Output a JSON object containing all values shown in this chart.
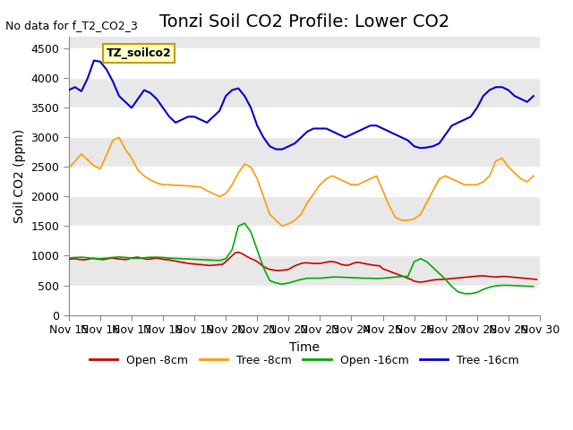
{
  "title": "Tonzi Soil CO2 Profile: Lower CO2",
  "no_data_text": "No data for f_T2_CO2_3",
  "xlabel": "Time",
  "ylabel": "Soil CO2 (ppm)",
  "ylim": [
    0,
    4700
  ],
  "yticks": [
    0,
    500,
    1000,
    1500,
    2000,
    2500,
    3000,
    3500,
    4000,
    4500
  ],
  "date_start": 15,
  "date_end": 30,
  "xtick_labels": [
    "Nov 15",
    "Nov 16",
    "Nov 17",
    "Nov 18",
    "Nov 19",
    "Nov 20",
    "Nov 21",
    "Nov 22",
    "Nov 23",
    "Nov 24",
    "Nov 25",
    "Nov 26",
    "Nov 27",
    "Nov 28",
    "Nov 29",
    "Nov 30"
  ],
  "legend_label": "TZ_soilco2",
  "legend_entries": [
    "Open -8cm",
    "Tree -8cm",
    "Open -16cm",
    "Tree -16cm"
  ],
  "legend_colors": [
    "#cc0000",
    "#ff9900",
    "#00aa00",
    "#0000cc"
  ],
  "background_color": "#ffffff",
  "plot_bg_color": "#e8e8e8",
  "grid_color": "#ffffff",
  "title_fontsize": 14,
  "label_fontsize": 10,
  "tick_fontsize": 9,
  "open_8cm": {
    "x": [
      15.0,
      15.1,
      15.2,
      15.3,
      15.4,
      15.5,
      15.6,
      15.7,
      15.8,
      15.9,
      16.0,
      16.1,
      16.2,
      16.3,
      16.4,
      16.5,
      16.6,
      16.7,
      16.8,
      16.9,
      17.0,
      17.1,
      17.2,
      17.3,
      17.4,
      17.5,
      17.6,
      17.7,
      17.8,
      17.9,
      18.0,
      18.1,
      18.2,
      18.3,
      18.4,
      18.5,
      18.6,
      18.7,
      18.8,
      18.9,
      19.0,
      19.1,
      19.2,
      19.3,
      19.4,
      19.5,
      19.6,
      19.7,
      19.8,
      19.9,
      20.0,
      20.1,
      20.2,
      20.3,
      20.4,
      20.5,
      20.6,
      20.7,
      20.8,
      20.9,
      21.0,
      21.1,
      21.2,
      21.3,
      21.4,
      21.5,
      21.6,
      21.7,
      21.8,
      21.9,
      22.0,
      22.1,
      22.2,
      22.3,
      22.4,
      22.5,
      22.6,
      22.7,
      22.8,
      22.9,
      23.0,
      23.1,
      23.2,
      23.3,
      23.4,
      23.5,
      23.6,
      23.7,
      23.8,
      23.9,
      24.0,
      24.1,
      24.2,
      24.3,
      24.4,
      24.5,
      24.6,
      24.7,
      24.8,
      24.9,
      25.0,
      25.1,
      25.2,
      25.3,
      25.4,
      25.5,
      25.6,
      25.7,
      25.8,
      25.9,
      26.0,
      26.1,
      26.2,
      26.3,
      26.4,
      26.5,
      26.6,
      26.7,
      26.8,
      26.9,
      27.0,
      27.1,
      27.2,
      27.3,
      27.4,
      27.5,
      27.6,
      27.7,
      27.8,
      27.9,
      28.0,
      28.1,
      28.2,
      28.3,
      28.4,
      28.5,
      28.6,
      28.7,
      28.8,
      28.9,
      29.0,
      29.1,
      29.2,
      29.3,
      29.4,
      29.5,
      29.6,
      29.7,
      29.8,
      29.9
    ],
    "y": [
      940,
      945,
      950,
      940,
      935,
      930,
      940,
      950,
      955,
      945,
      940,
      935,
      945,
      955,
      960,
      950,
      945,
      940,
      935,
      945,
      960,
      970,
      975,
      960,
      950,
      940,
      945,
      955,
      960,
      950,
      940,
      935,
      930,
      920,
      910,
      900,
      890,
      880,
      870,
      865,
      860,
      855,
      850,
      845,
      840,
      835,
      840,
      845,
      850,
      855,
      900,
      950,
      1000,
      1050,
      1060,
      1040,
      1010,
      980,
      950,
      930,
      900,
      860,
      820,
      790,
      770,
      760,
      750,
      750,
      755,
      760,
      770,
      800,
      830,
      850,
      870,
      880,
      880,
      875,
      870,
      870,
      870,
      880,
      890,
      900,
      900,
      890,
      870,
      850,
      840,
      840,
      860,
      880,
      890,
      880,
      870,
      860,
      850,
      840,
      835,
      830,
      780,
      760,
      740,
      720,
      700,
      680,
      660,
      640,
      620,
      600,
      570,
      560,
      555,
      560,
      570,
      580,
      590,
      595,
      600,
      600,
      605,
      610,
      615,
      620,
      625,
      630,
      635,
      640,
      645,
      650,
      655,
      660,
      660,
      655,
      650,
      645,
      640,
      645,
      650,
      650,
      645,
      640,
      635,
      630,
      625,
      620,
      615,
      610,
      605,
      600
    ]
  },
  "tree_8cm": {
    "x": [
      15.0,
      15.2,
      15.4,
      15.6,
      15.8,
      16.0,
      16.2,
      16.4,
      16.6,
      16.8,
      17.0,
      17.2,
      17.4,
      17.6,
      17.8,
      18.0,
      18.2,
      18.4,
      18.6,
      18.8,
      19.0,
      19.2,
      19.4,
      19.6,
      19.8,
      20.0,
      20.2,
      20.4,
      20.6,
      20.8,
      21.0,
      21.2,
      21.4,
      21.6,
      21.8,
      22.0,
      22.2,
      22.4,
      22.6,
      22.8,
      23.0,
      23.2,
      23.4,
      23.6,
      23.8,
      24.0,
      24.2,
      24.4,
      24.6,
      24.8,
      25.0,
      25.2,
      25.4,
      25.6,
      25.8,
      26.0,
      26.2,
      26.4,
      26.6,
      26.8,
      27.0,
      27.2,
      27.4,
      27.6,
      27.8,
      28.0,
      28.2,
      28.4,
      28.6,
      28.8,
      29.0,
      29.2,
      29.4,
      29.6,
      29.8
    ],
    "y": [
      2480,
      2600,
      2720,
      2620,
      2520,
      2470,
      2700,
      2950,
      3000,
      2800,
      2650,
      2450,
      2350,
      2280,
      2230,
      2200,
      2200,
      2190,
      2190,
      2180,
      2170,
      2160,
      2100,
      2050,
      2000,
      2050,
      2200,
      2400,
      2550,
      2500,
      2300,
      2000,
      1700,
      1600,
      1500,
      1540,
      1600,
      1700,
      1900,
      2050,
      2200,
      2300,
      2350,
      2300,
      2250,
      2200,
      2200,
      2250,
      2300,
      2350,
      2100,
      1850,
      1650,
      1600,
      1600,
      1620,
      1700,
      1900,
      2100,
      2300,
      2350,
      2300,
      2250,
      2200,
      2200,
      2200,
      2250,
      2350,
      2600,
      2650,
      2500,
      2400,
      2300,
      2250,
      2350
    ]
  },
  "open_16cm": {
    "x": [
      15.0,
      15.2,
      15.4,
      15.6,
      15.8,
      16.0,
      16.2,
      16.4,
      16.6,
      16.8,
      17.0,
      17.2,
      17.4,
      17.6,
      17.8,
      18.0,
      18.2,
      18.4,
      18.6,
      18.8,
      19.0,
      19.2,
      19.4,
      19.6,
      19.8,
      20.0,
      20.2,
      20.4,
      20.6,
      20.8,
      21.0,
      21.2,
      21.4,
      21.6,
      21.8,
      22.0,
      22.2,
      22.4,
      22.6,
      22.8,
      23.0,
      23.2,
      23.4,
      23.6,
      23.8,
      24.0,
      24.2,
      24.4,
      24.6,
      24.8,
      25.0,
      25.2,
      25.4,
      25.6,
      25.8,
      26.0,
      26.2,
      26.4,
      26.6,
      26.8,
      27.0,
      27.2,
      27.4,
      27.6,
      27.8,
      28.0,
      28.2,
      28.4,
      28.6,
      28.8,
      29.0,
      29.2,
      29.4,
      29.6,
      29.8
    ],
    "y": [
      960,
      970,
      975,
      965,
      955,
      950,
      960,
      970,
      980,
      970,
      960,
      955,
      965,
      975,
      975,
      970,
      960,
      955,
      950,
      945,
      940,
      935,
      930,
      925,
      920,
      950,
      1100,
      1500,
      1550,
      1400,
      1100,
      800,
      580,
      540,
      520,
      540,
      570,
      600,
      620,
      620,
      620,
      630,
      640,
      640,
      635,
      630,
      625,
      620,
      620,
      615,
      620,
      630,
      640,
      650,
      650,
      900,
      950,
      900,
      800,
      700,
      600,
      480,
      390,
      360,
      360,
      380,
      430,
      470,
      490,
      500,
      500,
      495,
      490,
      485,
      480
    ]
  },
  "tree_16cm": {
    "x": [
      15.0,
      15.2,
      15.4,
      15.6,
      15.8,
      16.0,
      16.2,
      16.4,
      16.6,
      16.8,
      17.0,
      17.2,
      17.4,
      17.6,
      17.8,
      18.0,
      18.2,
      18.4,
      18.6,
      18.8,
      19.0,
      19.2,
      19.4,
      19.6,
      19.8,
      20.0,
      20.2,
      20.4,
      20.6,
      20.8,
      21.0,
      21.2,
      21.4,
      21.6,
      21.8,
      22.0,
      22.2,
      22.4,
      22.6,
      22.8,
      23.0,
      23.2,
      23.4,
      23.6,
      23.8,
      24.0,
      24.2,
      24.4,
      24.6,
      24.8,
      25.0,
      25.2,
      25.4,
      25.6,
      25.8,
      26.0,
      26.2,
      26.4,
      26.6,
      26.8,
      27.0,
      27.2,
      27.4,
      27.6,
      27.8,
      28.0,
      28.2,
      28.4,
      28.6,
      28.8,
      29.0,
      29.2,
      29.4,
      29.6,
      29.8
    ],
    "y": [
      3800,
      3850,
      3780,
      4000,
      4300,
      4280,
      4150,
      3950,
      3700,
      3600,
      3500,
      3650,
      3800,
      3750,
      3650,
      3500,
      3350,
      3250,
      3300,
      3350,
      3350,
      3300,
      3250,
      3350,
      3450,
      3700,
      3800,
      3830,
      3700,
      3500,
      3200,
      3000,
      2850,
      2800,
      2800,
      2850,
      2900,
      3000,
      3100,
      3150,
      3150,
      3150,
      3100,
      3050,
      3000,
      3050,
      3100,
      3150,
      3200,
      3200,
      3150,
      3100,
      3050,
      3000,
      2950,
      2850,
      2820,
      2830,
      2850,
      2900,
      3050,
      3200,
      3250,
      3300,
      3350,
      3500,
      3700,
      3800,
      3850,
      3850,
      3800,
      3700,
      3650,
      3600,
      3700
    ]
  }
}
